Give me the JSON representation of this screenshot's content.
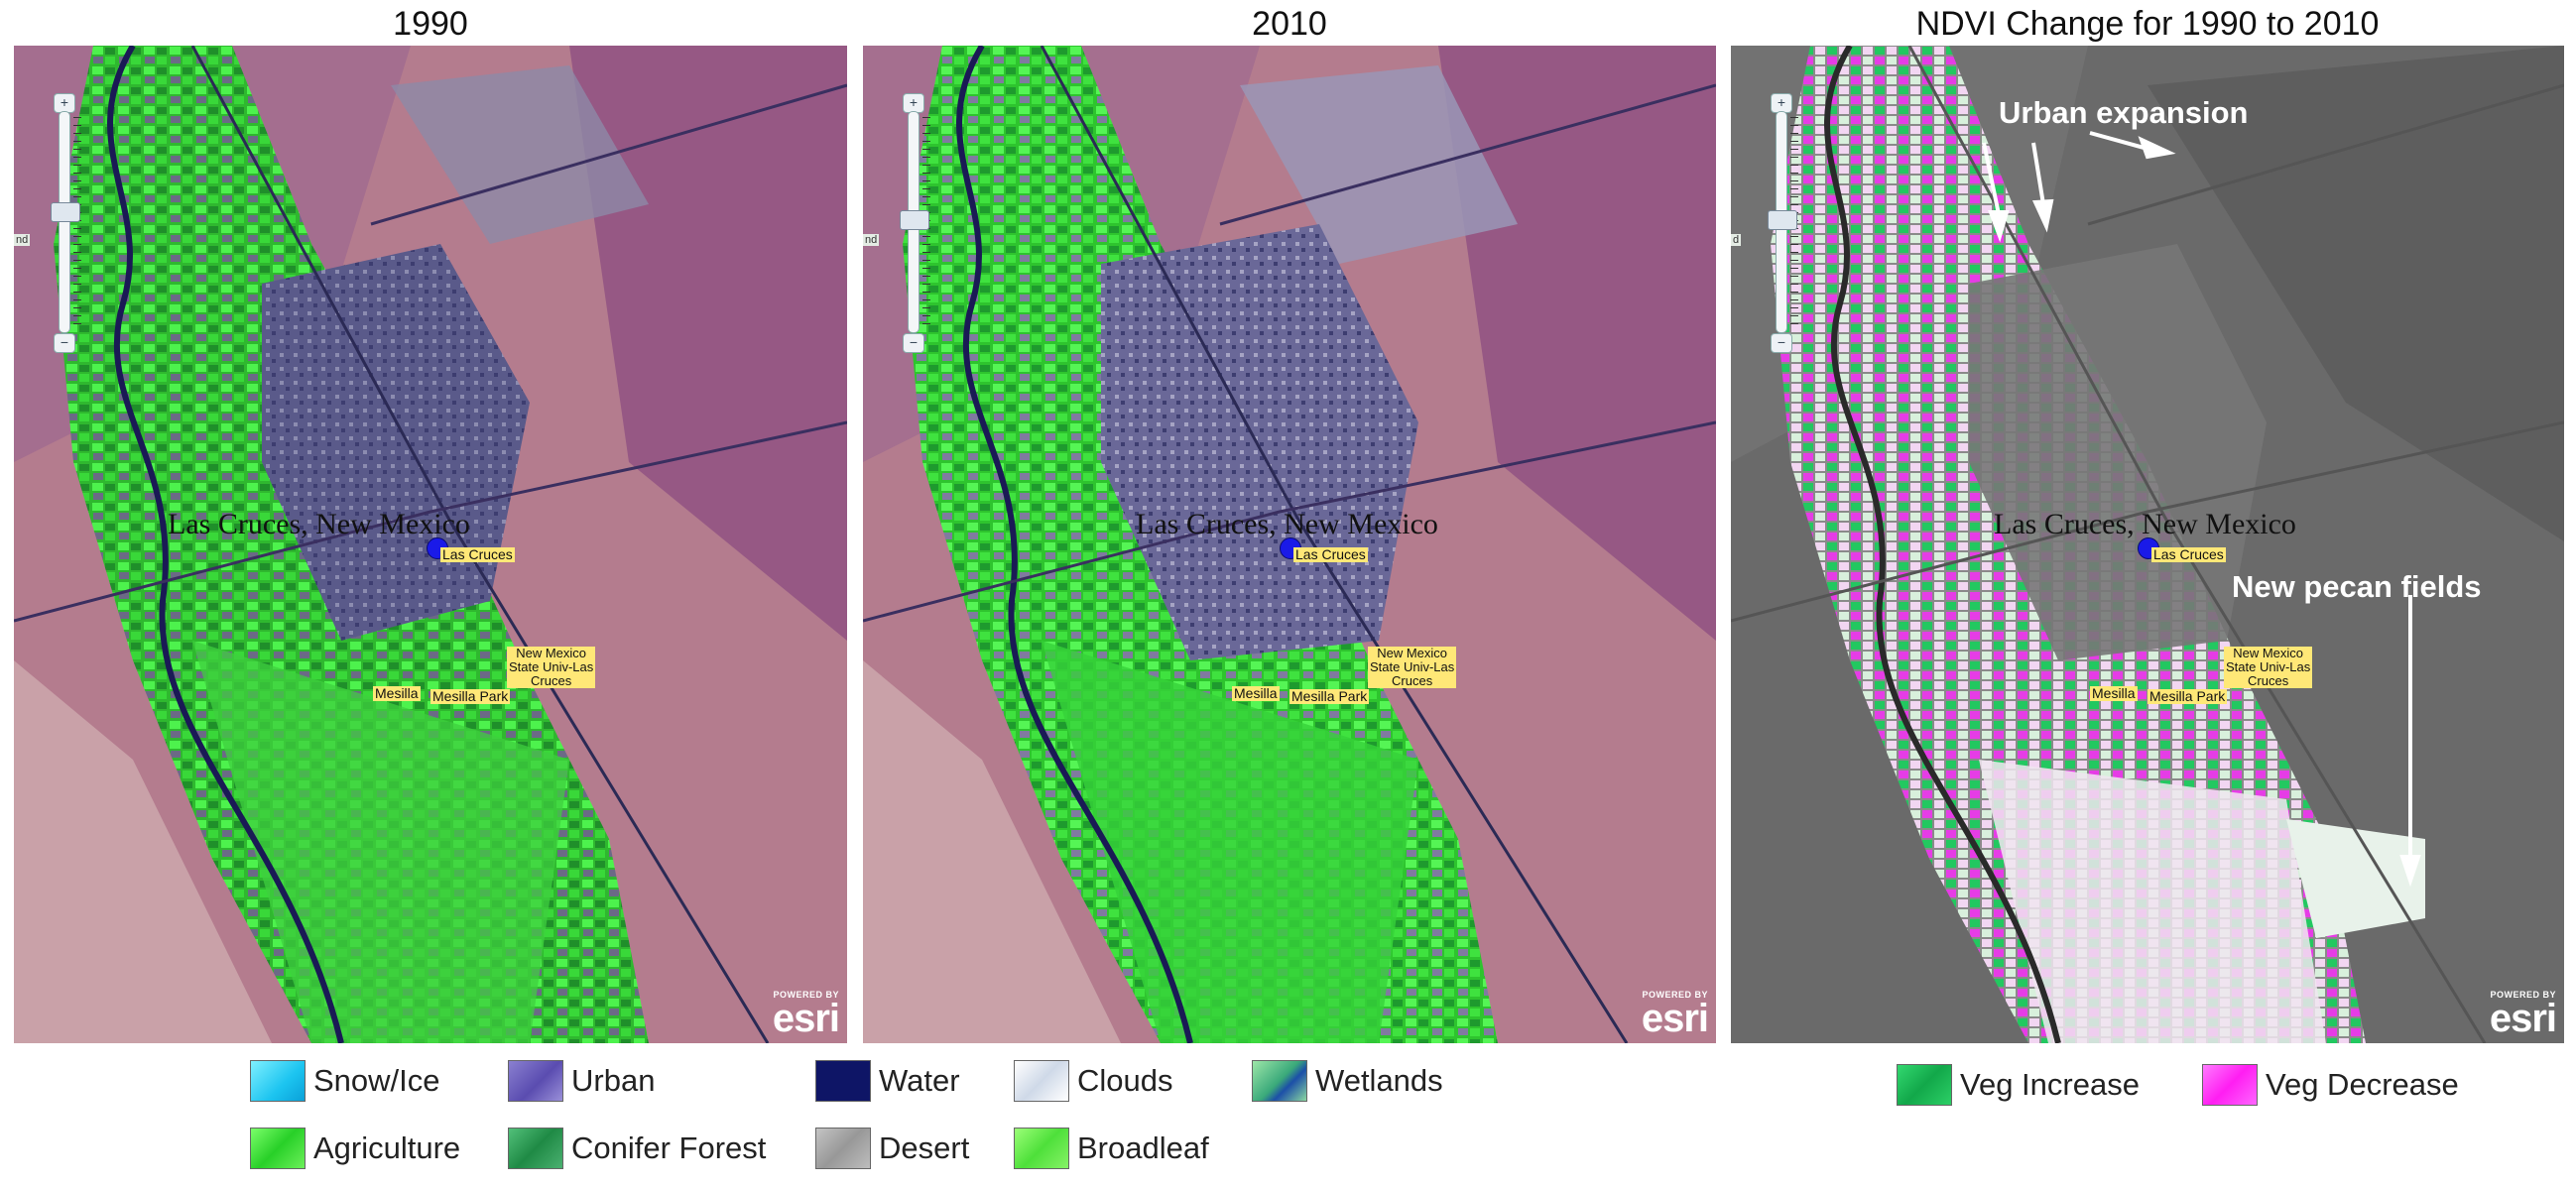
{
  "panels": [
    {
      "title": "1990",
      "city_label": "Las Cruces, New Mexico",
      "places": {
        "city": "Las Cruces",
        "mesilla": "Mesilla",
        "mesilla_park": "Mesilla Park",
        "nmsu": [
          "New Mexico",
          "State Univ-Las",
          "Cruces"
        ]
      }
    },
    {
      "title": "2010",
      "city_label": "Las Cruces, New Mexico",
      "places": {
        "city": "Las Cruces",
        "mesilla": "Mesilla",
        "mesilla_park": "Mesilla Park",
        "nmsu": [
          "New Mexico",
          "State Univ-Las",
          "Cruces"
        ]
      }
    },
    {
      "title": "NDVI Change for 1990 to 2010",
      "city_label": "Las Cruces, New Mexico",
      "places": {
        "city": "Las Cruces",
        "mesilla": "Mesilla",
        "mesilla_park": "Mesilla Park",
        "nmsu": [
          "New Mexico",
          "State Univ-Las",
          "Cruces"
        ]
      }
    }
  ],
  "esri": {
    "powered_by": "POWERED BY",
    "logo": "esri"
  },
  "annotations": {
    "urban_expansion": "Urban expansion",
    "new_pecan_fields": "New pecan fields"
  },
  "landcover_legend": [
    {
      "label": "Snow/Ice",
      "color": "#33ddff"
    },
    {
      "label": "Urban",
      "color": "#6a5cc0"
    },
    {
      "label": "Water",
      "color": "#0e1566"
    },
    {
      "label": "Clouds",
      "color": "#e8eef6"
    },
    {
      "label": "Wetlands",
      "color": "#5fd0a0"
    },
    {
      "label": "Agriculture",
      "color": "#44ee44"
    },
    {
      "label": "Conifer Forest",
      "color": "#2e9e55"
    },
    {
      "label": "Desert",
      "color": "#a8a8a8"
    },
    {
      "label": "Broadleaf",
      "color": "#66f24a"
    }
  ],
  "ndvi_legend": [
    {
      "label": "Veg Increase",
      "color": "#1ec45a"
    },
    {
      "label": "Veg Decrease",
      "color": "#ff2bff"
    }
  ],
  "colors": {
    "desert": "#b87a8c",
    "urban": "#6e6a9a",
    "agriculture": "#3ee33e",
    "river": "#1a1a55",
    "ndvi_base": "#6b6b6b"
  }
}
